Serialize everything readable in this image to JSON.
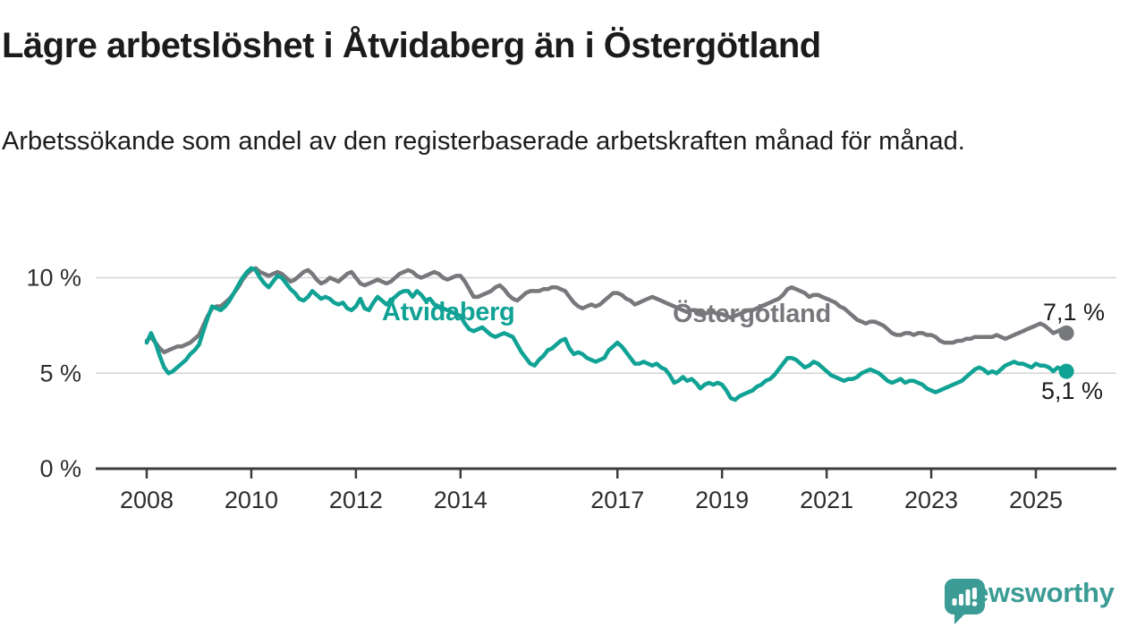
{
  "header": {
    "title": "Lägre arbetslöshet i Åtvidaberg än i Östergötland",
    "subtitle": "Arbetssökande som andel av den registerbaserade arbetskraften månad för månad."
  },
  "footer": {
    "brand": "Newsworthy",
    "brand_color": "#3b9c95"
  },
  "chart_data": {
    "type": "line",
    "title": "Lägre arbetslöshet i Åtvidaberg än i Östergötland",
    "subtitle": "Arbetssökande som andel av den registerbaserade arbetskraften månad för månad.",
    "unit": "percent of register-based labour force",
    "frequency": "monthly",
    "x_start": "2008-01",
    "x_end": "2025-08",
    "x_ticks": [
      "2008",
      "2010",
      "2012",
      "2014",
      "2017",
      "2019",
      "2021",
      "2023",
      "2025"
    ],
    "x_tick_years": [
      2008,
      2010,
      2012,
      2014,
      2017,
      2019,
      2021,
      2023,
      2025
    ],
    "y_ticks": [
      {
        "value": 0,
        "label": "0 %"
      },
      {
        "value": 5,
        "label": "5 %"
      },
      {
        "value": 10,
        "label": "10 %"
      }
    ],
    "ylim": [
      0,
      11.2
    ],
    "grid": "horizontal",
    "legend": "inline-labels",
    "axis_color": "#3d3d3d",
    "gridline_color": "#d4d4d4",
    "series": [
      {
        "name": "Östergötland",
        "color": "#77787b",
        "end_label": "7,1 %",
        "end_value": 7.1,
        "values": [
          6.7,
          6.9,
          6.6,
          6.3,
          6.1,
          6.2,
          6.3,
          6.4,
          6.4,
          6.5,
          6.6,
          6.8,
          7.0,
          7.5,
          8.0,
          8.4,
          8.5,
          8.5,
          8.7,
          8.9,
          9.2,
          9.5,
          9.9,
          10.2,
          10.4,
          10.5,
          10.3,
          10.2,
          10.1,
          10.2,
          10.3,
          10.2,
          10.0,
          9.8,
          9.9,
          10.1,
          10.3,
          10.4,
          10.2,
          9.9,
          9.7,
          9.8,
          10.0,
          9.9,
          9.8,
          10.0,
          10.2,
          10.3,
          10.0,
          9.7,
          9.6,
          9.7,
          9.8,
          9.9,
          9.8,
          9.7,
          9.8,
          10.0,
          10.2,
          10.3,
          10.4,
          10.3,
          10.1,
          10.0,
          10.1,
          10.2,
          10.3,
          10.2,
          10.0,
          9.9,
          10.0,
          10.1,
          10.1,
          9.8,
          9.4,
          9.0,
          9.0,
          9.1,
          9.2,
          9.3,
          9.5,
          9.6,
          9.4,
          9.1,
          8.9,
          8.8,
          9.0,
          9.2,
          9.3,
          9.3,
          9.3,
          9.4,
          9.4,
          9.5,
          9.5,
          9.4,
          9.3,
          9.0,
          8.7,
          8.5,
          8.4,
          8.5,
          8.6,
          8.5,
          8.6,
          8.8,
          9.0,
          9.2,
          9.2,
          9.1,
          8.9,
          8.8,
          8.6,
          8.7,
          8.8,
          8.9,
          9.0,
          8.9,
          8.8,
          8.7,
          8.6,
          8.5,
          8.4,
          8.3,
          8.2,
          8.3,
          8.3,
          8.2,
          8.1,
          8.2,
          8.2,
          8.1,
          8.1,
          8.0,
          7.9,
          8.0,
          8.1,
          8.2,
          8.3,
          8.3,
          8.4,
          8.5,
          8.6,
          8.7,
          8.8,
          8.9,
          9.1,
          9.4,
          9.5,
          9.4,
          9.3,
          9.2,
          9.0,
          9.1,
          9.1,
          9.0,
          8.9,
          8.8,
          8.7,
          8.5,
          8.4,
          8.2,
          8.0,
          7.8,
          7.7,
          7.6,
          7.7,
          7.7,
          7.6,
          7.5,
          7.3,
          7.1,
          7.0,
          7.0,
          7.1,
          7.1,
          7.0,
          7.1,
          7.1,
          7.0,
          7.0,
          6.9,
          6.7,
          6.6,
          6.6,
          6.6,
          6.7,
          6.7,
          6.8,
          6.8,
          6.9,
          6.9,
          6.9,
          6.9,
          6.9,
          7.0,
          6.9,
          6.8,
          6.9,
          7.0,
          7.1,
          7.2,
          7.3,
          7.4,
          7.5,
          7.6,
          7.5,
          7.3,
          7.1,
          7.2,
          7.3,
          7.1
        ]
      },
      {
        "name": "Åtvidaberg",
        "color": "#10a295",
        "end_label": "5,1 %",
        "end_value": 5.1,
        "values": [
          6.6,
          7.1,
          6.6,
          5.9,
          5.3,
          5.0,
          5.1,
          5.3,
          5.5,
          5.7,
          6.0,
          6.2,
          6.5,
          7.2,
          7.9,
          8.5,
          8.4,
          8.3,
          8.5,
          8.8,
          9.2,
          9.6,
          10.0,
          10.3,
          10.5,
          10.4,
          10.0,
          9.7,
          9.5,
          9.8,
          10.1,
          10.0,
          9.7,
          9.4,
          9.2,
          8.9,
          8.8,
          9.0,
          9.3,
          9.1,
          8.9,
          9.0,
          8.9,
          8.7,
          8.6,
          8.7,
          8.4,
          8.3,
          8.5,
          8.9,
          8.4,
          8.3,
          8.7,
          9.0,
          8.8,
          8.6,
          8.8,
          9.0,
          9.2,
          9.3,
          9.3,
          9.0,
          9.3,
          9.1,
          8.8,
          8.9,
          8.6,
          8.5,
          8.4,
          8.3,
          8.2,
          8.1,
          8.0,
          7.6,
          7.3,
          7.2,
          7.3,
          7.4,
          7.2,
          7.0,
          6.9,
          7.0,
          7.1,
          7.0,
          6.9,
          6.5,
          6.1,
          5.8,
          5.5,
          5.4,
          5.7,
          5.9,
          6.2,
          6.3,
          6.5,
          6.7,
          6.8,
          6.3,
          6.0,
          6.1,
          6.0,
          5.8,
          5.7,
          5.6,
          5.7,
          5.8,
          6.2,
          6.4,
          6.6,
          6.4,
          6.1,
          5.8,
          5.5,
          5.5,
          5.6,
          5.5,
          5.4,
          5.5,
          5.3,
          5.2,
          4.9,
          4.5,
          4.6,
          4.8,
          4.6,
          4.7,
          4.5,
          4.2,
          4.4,
          4.5,
          4.4,
          4.5,
          4.4,
          4.1,
          3.7,
          3.6,
          3.8,
          3.9,
          4.0,
          4.1,
          4.3,
          4.4,
          4.6,
          4.7,
          4.9,
          5.2,
          5.5,
          5.8,
          5.8,
          5.7,
          5.5,
          5.3,
          5.4,
          5.6,
          5.5,
          5.3,
          5.1,
          4.9,
          4.8,
          4.7,
          4.6,
          4.7,
          4.7,
          4.8,
          5.0,
          5.1,
          5.2,
          5.1,
          5.0,
          4.8,
          4.6,
          4.5,
          4.6,
          4.7,
          4.5,
          4.6,
          4.6,
          4.5,
          4.4,
          4.2,
          4.1,
          4.0,
          4.1,
          4.2,
          4.3,
          4.4,
          4.5,
          4.6,
          4.8,
          5.0,
          5.2,
          5.3,
          5.2,
          5.0,
          5.1,
          5.0,
          5.2,
          5.4,
          5.5,
          5.6,
          5.5,
          5.5,
          5.4,
          5.3,
          5.5,
          5.4,
          5.4,
          5.3,
          5.1,
          5.3,
          5.2,
          5.1
        ]
      }
    ]
  }
}
